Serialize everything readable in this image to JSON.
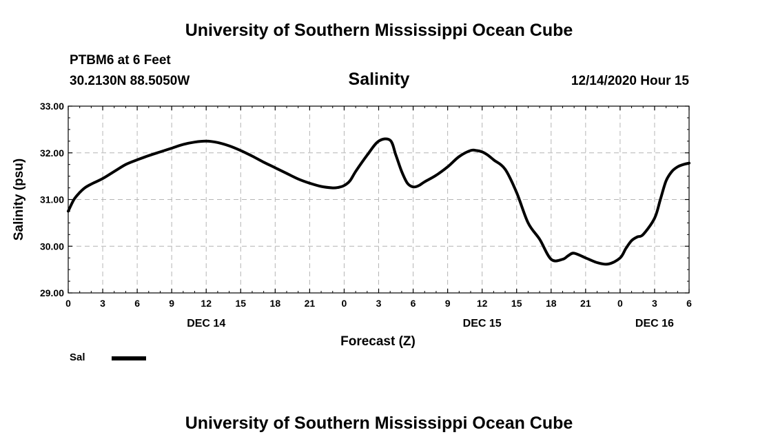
{
  "header": {
    "title": "University of Southern Mississippi Ocean Cube",
    "station": "PTBM6 at 6 Feet",
    "coordinates": "30.2130N 88.5050W",
    "datetime": "12/14/2020 Hour 15"
  },
  "footer": {
    "title": "University of Southern Mississippi Ocean Cube"
  },
  "legend": {
    "label": "Sal"
  },
  "chart_data": {
    "type": "line",
    "title": "Salinity",
    "xlabel": "Forecast (Z)",
    "ylabel": "Salinity (psu)",
    "ylim": [
      29.0,
      33.0
    ],
    "xlim": [
      0,
      54
    ],
    "x_unit": "hours from 0Z Dec 14",
    "grid": true,
    "legend_position": "bottom-left",
    "yticks": [
      29.0,
      30.0,
      31.0,
      32.0,
      33.0
    ],
    "ytick_labels": [
      "29.00",
      "30.00",
      "31.00",
      "32.00",
      "33.00"
    ],
    "xticks": [
      0,
      3,
      6,
      9,
      12,
      15,
      18,
      21,
      24,
      27,
      30,
      33,
      36,
      39,
      42,
      45,
      48,
      51,
      54
    ],
    "xtick_labels": [
      "0",
      "3",
      "6",
      "9",
      "12",
      "15",
      "18",
      "21",
      "0",
      "3",
      "6",
      "9",
      "12",
      "15",
      "18",
      "21",
      "0",
      "3",
      "6"
    ],
    "date_labels": [
      {
        "x": 12,
        "label": "DEC 14"
      },
      {
        "x": 36,
        "label": "DEC 15"
      },
      {
        "x": 51,
        "label": "DEC 16"
      }
    ],
    "series": [
      {
        "name": "Sal",
        "color": "#000000",
        "x": [
          0,
          0.5,
          1,
          1.5,
          2,
          3,
          4,
          5,
          6,
          7,
          8,
          9,
          10,
          11,
          12,
          13,
          14,
          15,
          16,
          17,
          18,
          19,
          20,
          21,
          22,
          23,
          23.5,
          24,
          24.5,
          25,
          26,
          27,
          28,
          28.5,
          29,
          29.5,
          30,
          30.5,
          31,
          32,
          33,
          34,
          35,
          35.5,
          36,
          36.5,
          37,
          38,
          39,
          40,
          41,
          42,
          43,
          43.5,
          44,
          45,
          46,
          47,
          48,
          48.5,
          49,
          49.5,
          50,
          51,
          51.5,
          52,
          52.5,
          53,
          53.5,
          54
        ],
        "values": [
          30.75,
          31.0,
          31.15,
          31.26,
          31.33,
          31.45,
          31.6,
          31.75,
          31.85,
          31.94,
          32.02,
          32.1,
          32.18,
          32.23,
          32.25,
          32.22,
          32.15,
          32.05,
          31.93,
          31.8,
          31.68,
          31.56,
          31.44,
          31.35,
          31.28,
          31.25,
          31.26,
          31.3,
          31.4,
          31.6,
          31.95,
          32.25,
          32.27,
          31.95,
          31.6,
          31.35,
          31.27,
          31.3,
          31.38,
          31.52,
          31.7,
          31.92,
          32.05,
          32.05,
          32.02,
          31.95,
          31.85,
          31.65,
          31.15,
          30.5,
          30.15,
          29.72,
          29.72,
          29.8,
          29.85,
          29.75,
          29.65,
          29.62,
          29.75,
          29.95,
          30.12,
          30.2,
          30.25,
          30.6,
          31.0,
          31.4,
          31.6,
          31.7,
          31.75,
          31.78
        ]
      }
    ]
  }
}
